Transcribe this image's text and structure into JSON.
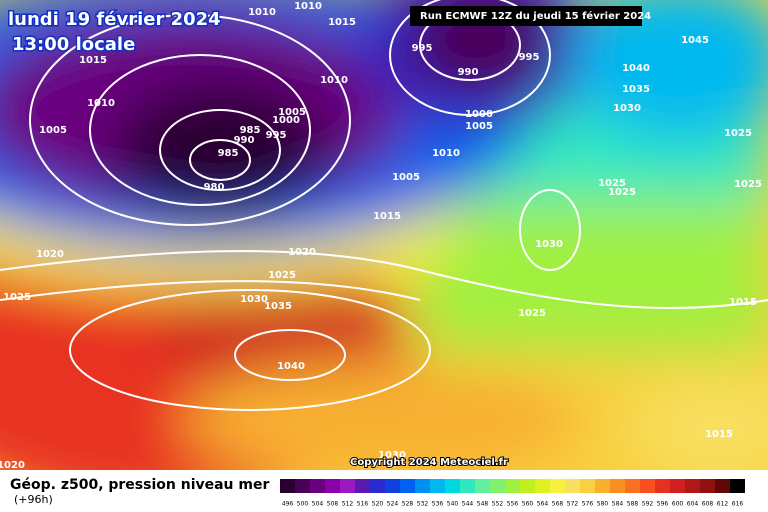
{
  "header": {
    "date": "lundi 19 février 2024",
    "time": "13:00 locale",
    "run": "Run ECMWF 12Z du jeudi 15 février 2024"
  },
  "copyright": "Copyright 2024 Meteociel.fr",
  "legend": {
    "title": "Géop. z500, pression niveau mer",
    "lead": "(+96h)",
    "ticks": [
      496,
      500,
      504,
      508,
      512,
      516,
      520,
      524,
      528,
      532,
      536,
      540,
      544,
      548,
      552,
      556,
      560,
      564,
      568,
      572,
      576,
      580,
      584,
      588,
      592,
      596,
      600,
      604,
      608,
      612,
      616
    ],
    "colors": [
      "#2a0030",
      "#4b0057",
      "#6a0080",
      "#8a00a8",
      "#9a1ac0",
      "#5a1ab0",
      "#2a2ad0",
      "#1040e0",
      "#0060f0",
      "#0090f0",
      "#00b8f0",
      "#00d8e0",
      "#30e8c0",
      "#60f0a0",
      "#80f070",
      "#a0f040",
      "#c0f020",
      "#e0f020",
      "#f8f040",
      "#f8e060",
      "#f8d040",
      "#f8b030",
      "#f89020",
      "#f87020",
      "#f85020",
      "#e83020",
      "#d02020",
      "#b01818",
      "#901010",
      "#600808",
      "#000000"
    ]
  },
  "isobar_labels": [
    1010,
    1010,
    1015,
    1015,
    1010,
    1010,
    1005,
    1005,
    1000,
    995,
    990,
    985,
    985,
    980,
    995,
    990,
    995,
    1000,
    1005,
    1010,
    1005,
    1015,
    1020,
    1025,
    1030,
    1035,
    1040,
    1020,
    1025,
    1030,
    1025,
    1045,
    1040,
    1035,
    1030,
    1025,
    1025,
    1025,
    1025,
    1015,
    1015,
    1030,
    1020
  ]
}
